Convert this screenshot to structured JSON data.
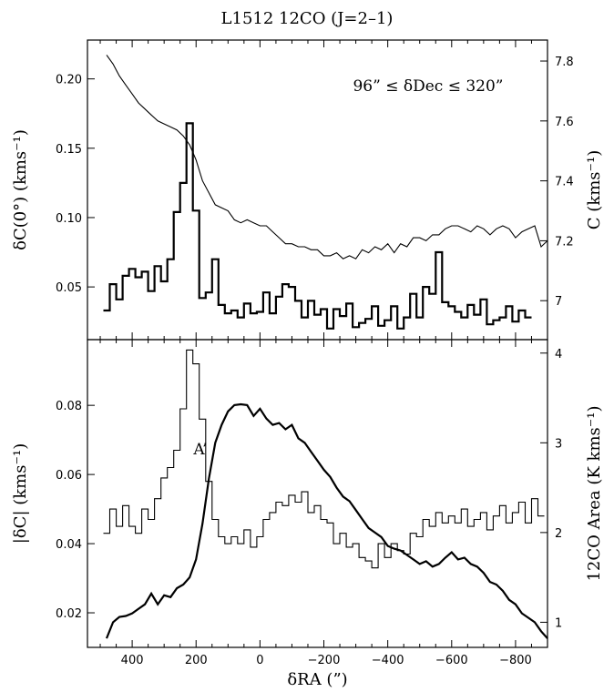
{
  "chart_data": [
    {
      "type": "line",
      "title": "L1512 12CO (J=2–1)",
      "annotation": "96” ≤ δDec ≤ 320”",
      "xlabel": "",
      "ylabel_left": "δC(0°) (kms⁻¹)",
      "ylabel_right": "C (kms⁻¹)",
      "xlim": [
        540,
        -900
      ],
      "ylim_left": [
        0.012,
        0.228
      ],
      "ylim_right": [
        6.87,
        7.87
      ],
      "xticks": [
        400,
        200,
        0,
        -200,
        -400,
        -600,
        -800
      ],
      "yticks_left": [
        0.05,
        0.1,
        0.15,
        0.2
      ],
      "yticks_right": [
        7.0,
        7.2,
        7.4,
        7.6,
        7.8
      ],
      "grid": false,
      "series": [
        {
          "axis": "left",
          "style": "step-thick",
          "x": [
            480,
            460,
            440,
            420,
            400,
            380,
            360,
            340,
            320,
            300,
            280,
            260,
            240,
            220,
            200,
            180,
            160,
            140,
            120,
            100,
            80,
            60,
            40,
            20,
            0,
            -20,
            -40,
            -60,
            -80,
            -100,
            -120,
            -140,
            -160,
            -180,
            -200,
            -220,
            -240,
            -260,
            -280,
            -300,
            -320,
            -340,
            -360,
            -380,
            -400,
            -420,
            -440,
            -460,
            -480,
            -500,
            -520,
            -540,
            -560,
            -580,
            -600,
            -620,
            -640,
            -660,
            -680,
            -700,
            -720,
            -740,
            -760,
            -780,
            -800,
            -820,
            -840
          ],
          "values": [
            0.033,
            0.052,
            0.041,
            0.058,
            0.063,
            0.057,
            0.061,
            0.047,
            0.065,
            0.054,
            0.07,
            0.104,
            0.125,
            0.168,
            0.105,
            0.042,
            0.046,
            0.07,
            0.037,
            0.031,
            0.033,
            0.028,
            0.038,
            0.031,
            0.032,
            0.046,
            0.031,
            0.043,
            0.052,
            0.05,
            0.04,
            0.028,
            0.04,
            0.03,
            0.034,
            0.02,
            0.034,
            0.029,
            0.038,
            0.021,
            0.024,
            0.027,
            0.036,
            0.022,
            0.026,
            0.036,
            0.02,
            0.028,
            0.045,
            0.028,
            0.05,
            0.045,
            0.075,
            0.039,
            0.036,
            0.032,
            0.028,
            0.037,
            0.03,
            0.041,
            0.023,
            0.026,
            0.028,
            0.036,
            0.025,
            0.033,
            0.028
          ]
        },
        {
          "axis": "right",
          "style": "line-thin",
          "x": [
            480,
            460,
            440,
            420,
            400,
            380,
            360,
            340,
            320,
            300,
            280,
            260,
            240,
            220,
            200,
            180,
            160,
            140,
            120,
            100,
            80,
            60,
            40,
            20,
            0,
            -20,
            -40,
            -60,
            -80,
            -100,
            -120,
            -140,
            -160,
            -180,
            -200,
            -220,
            -240,
            -260,
            -280,
            -300,
            -320,
            -340,
            -360,
            -380,
            -400,
            -420,
            -440,
            -460,
            -480,
            -500,
            -520,
            -540,
            -560,
            -580,
            -600,
            -620,
            -640,
            -660,
            -680,
            -700,
            -720,
            -740,
            -760,
            -780,
            -800,
            -820,
            -840,
            -860,
            -880,
            -900
          ],
          "values": [
            7.82,
            7.79,
            7.75,
            7.72,
            7.69,
            7.66,
            7.64,
            7.62,
            7.6,
            7.59,
            7.58,
            7.57,
            7.55,
            7.52,
            7.47,
            7.4,
            7.36,
            7.32,
            7.31,
            7.3,
            7.27,
            7.26,
            7.27,
            7.26,
            7.25,
            7.25,
            7.23,
            7.21,
            7.19,
            7.19,
            7.18,
            7.18,
            7.17,
            7.17,
            7.15,
            7.15,
            7.16,
            7.14,
            7.15,
            7.14,
            7.17,
            7.16,
            7.18,
            7.17,
            7.19,
            7.16,
            7.19,
            7.18,
            7.21,
            7.21,
            7.2,
            7.22,
            7.22,
            7.24,
            7.25,
            7.25,
            7.24,
            7.23,
            7.25,
            7.24,
            7.22,
            7.24,
            7.25,
            7.24,
            7.21,
            7.23,
            7.24,
            7.25,
            7.18,
            7.2
          ]
        }
      ]
    },
    {
      "type": "line",
      "title": "",
      "annotation": "A’",
      "xlabel": "δRA (”)",
      "ylabel_left": "|δC| (kms⁻¹)",
      "ylabel_right": "12CO Area (K kms⁻¹)",
      "xlim": [
        540,
        -900
      ],
      "ylim_left": [
        0.01,
        0.099
      ],
      "ylim_right": [
        0.72,
        4.15
      ],
      "xticks": [
        400,
        200,
        0,
        -200,
        -400,
        -600,
        -800
      ],
      "yticks_left": [
        0.02,
        0.04,
        0.06,
        0.08
      ],
      "yticks_right": [
        1,
        2,
        3,
        4
      ],
      "grid": false,
      "series": [
        {
          "axis": "left",
          "style": "step-thin",
          "x": [
            480,
            460,
            440,
            420,
            400,
            380,
            360,
            340,
            320,
            300,
            280,
            260,
            240,
            220,
            200,
            180,
            160,
            140,
            120,
            100,
            80,
            60,
            40,
            20,
            0,
            -20,
            -40,
            -60,
            -80,
            -100,
            -120,
            -140,
            -160,
            -180,
            -200,
            -220,
            -240,
            -260,
            -280,
            -300,
            -320,
            -340,
            -360,
            -380,
            -400,
            -420,
            -440,
            -460,
            -480,
            -500,
            -520,
            -540,
            -560,
            -580,
            -600,
            -620,
            -640,
            -660,
            -680,
            -700,
            -720,
            -740,
            -760,
            -780,
            -800,
            -820,
            -840,
            -860,
            -880
          ],
          "values": [
            0.043,
            0.05,
            0.045,
            0.051,
            0.045,
            0.043,
            0.05,
            0.047,
            0.053,
            0.059,
            0.062,
            0.067,
            0.079,
            0.096,
            0.092,
            0.076,
            0.058,
            0.047,
            0.042,
            0.04,
            0.042,
            0.04,
            0.044,
            0.039,
            0.042,
            0.047,
            0.049,
            0.052,
            0.051,
            0.054,
            0.052,
            0.055,
            0.049,
            0.051,
            0.047,
            0.046,
            0.04,
            0.043,
            0.039,
            0.04,
            0.036,
            0.035,
            0.033,
            0.04,
            0.036,
            0.04,
            0.038,
            0.037,
            0.043,
            0.042,
            0.047,
            0.045,
            0.049,
            0.046,
            0.048,
            0.046,
            0.05,
            0.045,
            0.047,
            0.049,
            0.044,
            0.048,
            0.051,
            0.046,
            0.049,
            0.052,
            0.046,
            0.053,
            0.048
          ]
        },
        {
          "axis": "right",
          "style": "line-thick",
          "x": [
            480,
            460,
            440,
            420,
            400,
            380,
            360,
            340,
            320,
            300,
            280,
            260,
            240,
            220,
            200,
            180,
            160,
            140,
            120,
            100,
            80,
            60,
            40,
            20,
            0,
            -20,
            -40,
            -60,
            -80,
            -100,
            -120,
            -140,
            -160,
            -180,
            -200,
            -220,
            -240,
            -260,
            -280,
            -300,
            -320,
            -340,
            -360,
            -380,
            -400,
            -420,
            -440,
            -460,
            -480,
            -500,
            -520,
            -540,
            -560,
            -580,
            -600,
            -620,
            -640,
            -660,
            -680,
            -700,
            -720,
            -740,
            -760,
            -780,
            -800,
            -820,
            -840,
            -860,
            -880,
            -900
          ],
          "values": [
            0.82,
            1.0,
            1.06,
            1.07,
            1.1,
            1.15,
            1.2,
            1.32,
            1.2,
            1.3,
            1.28,
            1.38,
            1.42,
            1.5,
            1.7,
            2.1,
            2.6,
            3.0,
            3.2,
            3.35,
            3.42,
            3.43,
            3.42,
            3.3,
            3.38,
            3.27,
            3.2,
            3.22,
            3.15,
            3.2,
            3.05,
            3.0,
            2.9,
            2.8,
            2.7,
            2.62,
            2.5,
            2.4,
            2.35,
            2.25,
            2.15,
            2.05,
            2.0,
            1.95,
            1.85,
            1.82,
            1.8,
            1.75,
            1.7,
            1.65,
            1.68,
            1.62,
            1.65,
            1.72,
            1.78,
            1.7,
            1.72,
            1.65,
            1.62,
            1.55,
            1.45,
            1.42,
            1.35,
            1.25,
            1.2,
            1.1,
            1.05,
            1.0,
            0.9,
            0.82
          ]
        }
      ]
    }
  ]
}
